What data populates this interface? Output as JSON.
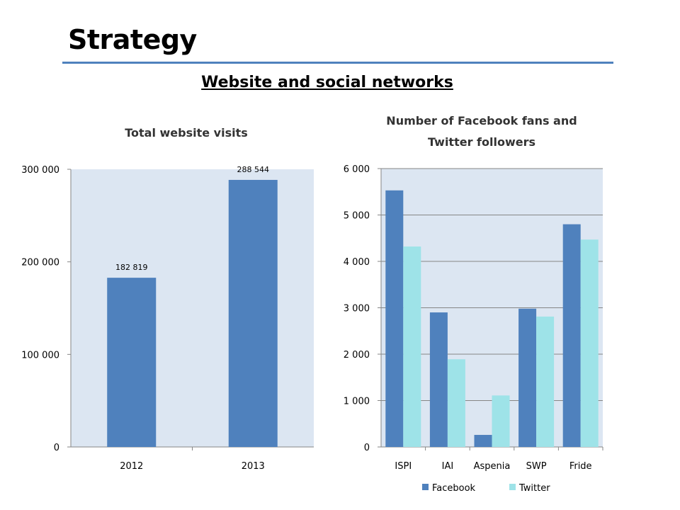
{
  "slide": {
    "title": "Strategy",
    "subtitle": "Website and social networks"
  },
  "colors": {
    "accent": "#4f81bd",
    "facebook": "#4f81bd",
    "twitter": "#9ee3e8",
    "plot_bg": "#dce6f2"
  },
  "chart_data": [
    {
      "type": "bar",
      "title": "Total website visits",
      "categories": [
        "2012",
        "2013"
      ],
      "values": [
        182819,
        288544
      ],
      "data_labels": [
        "182 819",
        "288 544"
      ],
      "ylim": [
        0,
        300000
      ],
      "yticks": [
        0,
        100000,
        200000,
        300000
      ],
      "ytick_labels": [
        "0",
        "100 000",
        "200 000",
        "300 000"
      ],
      "grid": false,
      "legend": "none"
    },
    {
      "type": "bar",
      "title_lines": [
        "Number of Facebook fans and",
        "Twitter followers"
      ],
      "categories": [
        "ISPI",
        "IAI",
        "Aspenia",
        "SWP",
        "Fride"
      ],
      "series": [
        {
          "name": "Facebook",
          "values": [
            5530,
            2900,
            260,
            2980,
            4800
          ]
        },
        {
          "name": "Twitter",
          "values": [
            4320,
            1890,
            1110,
            2810,
            4470
          ]
        }
      ],
      "ylim": [
        0,
        6000
      ],
      "yticks": [
        0,
        1000,
        2000,
        3000,
        4000,
        5000,
        6000
      ],
      "ytick_labels": [
        "0",
        "1 000",
        "2 000",
        "3 000",
        "4 000",
        "5 000",
        "6 000"
      ],
      "grid": true,
      "legend": "bottom"
    }
  ]
}
